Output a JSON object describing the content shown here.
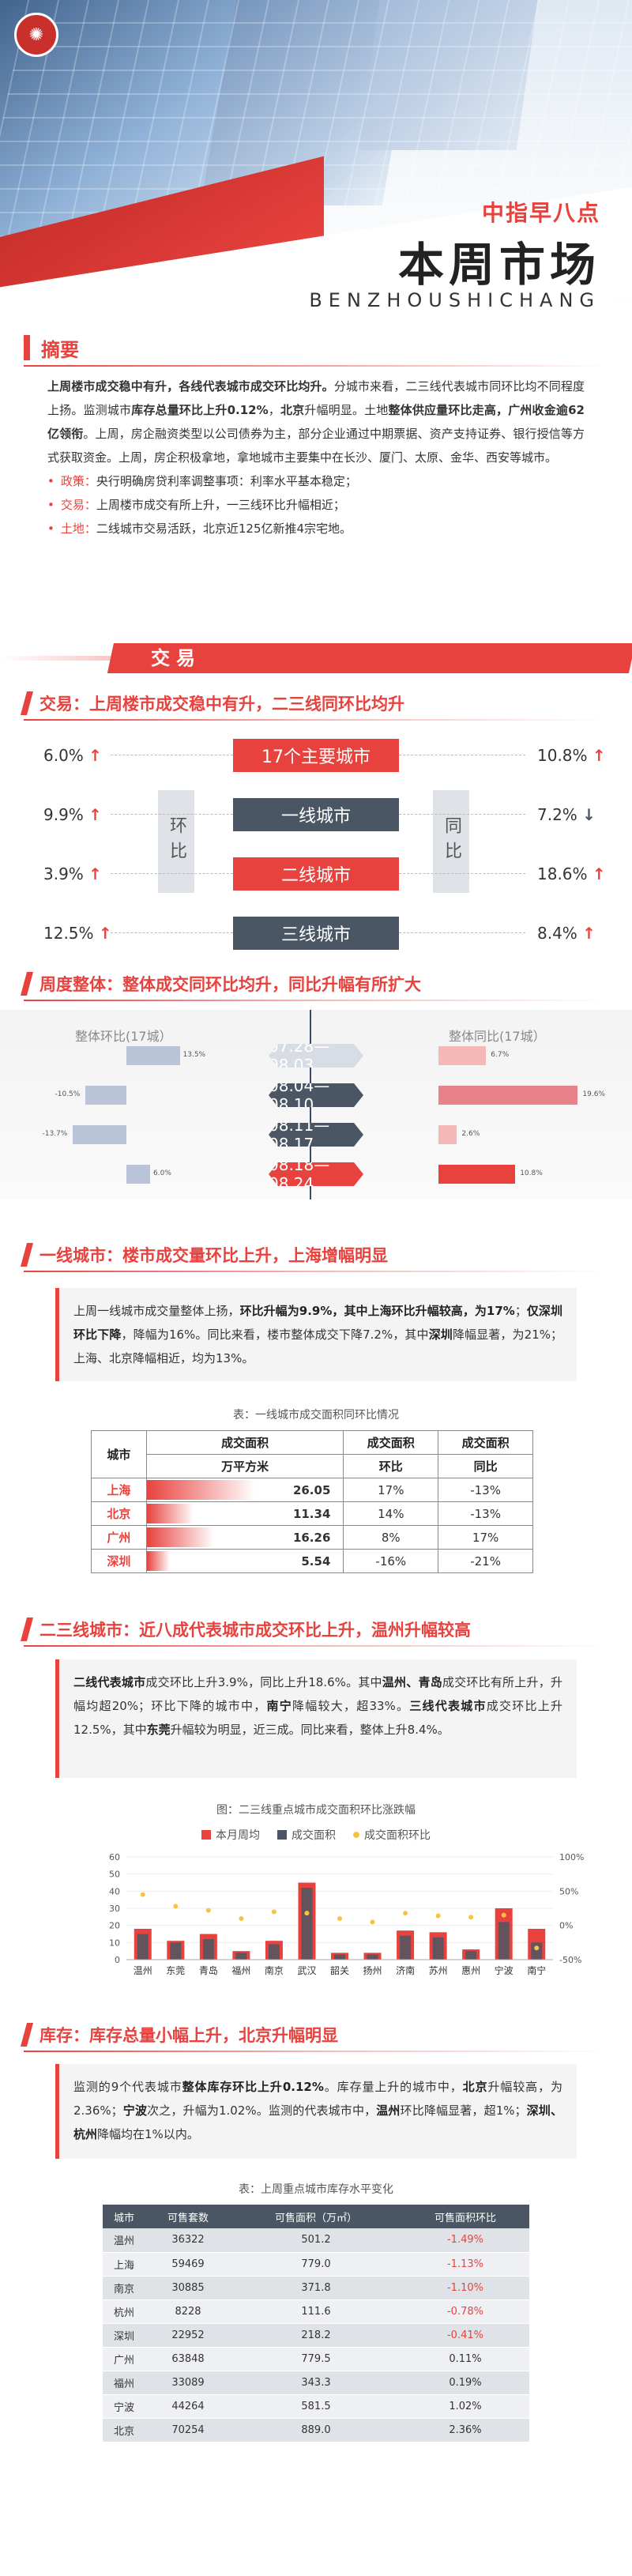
{
  "header": {
    "brand": "中指早八点",
    "title": "本周市场",
    "subtitle": "BENZHOUSHICHANG",
    "logo_icon": "seal-icon"
  },
  "summary": {
    "title": "摘要",
    "para_parts": [
      {
        "t": "上周楼市成交稳中有升，各线代表城市成交环比均升。",
        "b": true
      },
      {
        "t": "分城市来看，二三线代表城市同环比均不同程度上扬。监测城市",
        "b": false
      },
      {
        "t": "库存总量环比上升0.12%",
        "b": true
      },
      {
        "t": "，",
        "b": false
      },
      {
        "t": "北京",
        "b": true
      },
      {
        "t": "升幅明显。土地",
        "b": false
      },
      {
        "t": "整体供应量环比走高，广州收金逾62亿领衔",
        "b": true
      },
      {
        "t": "。上周，房企融资类型以公司债券为主，部分企业通过中期票据、资产支持证券、银行授信等方式获取资金。上周，房企积极拿地，拿地城市主要集中在长沙、厦门、太原、金华、西安等城市。",
        "b": false
      }
    ],
    "bullets": [
      {
        "label": "政策：",
        "text": "央行明确房贷利率调整事项：利率水平基本稳定；"
      },
      {
        "label": "交易：",
        "text": "上周楼市成交有所上升，一三线环比升幅相近；"
      },
      {
        "label": "土地：",
        "text": "二线城市交易活跃，北京近125亿新推4宗宅地。"
      }
    ]
  },
  "banner_trade": "交易",
  "trade": {
    "heading": "交易：上周楼市成交稳中有升，二三线同环比均升",
    "side_left": "环比",
    "side_right": "同比",
    "rows": [
      {
        "name": "17个主要城市",
        "mom": "6.0%",
        "mom_dir": "up",
        "yoy": "10.8%",
        "yoy_dir": "up",
        "style": "red"
      },
      {
        "name": "一线城市",
        "mom": "9.9%",
        "mom_dir": "up",
        "yoy": "7.2%",
        "yoy_dir": "down",
        "style": "gray"
      },
      {
        "name": "二线城市",
        "mom": "3.9%",
        "mom_dir": "up",
        "yoy": "18.6%",
        "yoy_dir": "up",
        "style": "red"
      },
      {
        "name": "三线城市",
        "mom": "12.5%",
        "mom_dir": "up",
        "yoy": "8.4%",
        "yoy_dir": "up",
        "style": "gray"
      }
    ],
    "arrow_up": "↑",
    "arrow_down": "↓"
  },
  "weekly": {
    "heading": "周度整体：整体成交同环比均升，同比升幅有所扩大",
    "left_title": "整体环比(17城）",
    "right_title": "整体同比(17城）",
    "weeks": [
      {
        "label": "07.28—08.03",
        "mom": 13.5,
        "mom_text": "13.5%",
        "yoy": 6.7,
        "yoy_text": "6.7%",
        "style": "lt"
      },
      {
        "label": "08.04—08.10",
        "mom": -10.5,
        "mom_text": "-10.5%",
        "yoy": 19.6,
        "yoy_text": "19.6%",
        "style": "g"
      },
      {
        "label": "08.11—08.17",
        "mom": -13.7,
        "mom_text": "-13.7%",
        "yoy": 2.6,
        "yoy_text": "2.6%",
        "style": "g"
      },
      {
        "label": "08.18—08.24",
        "mom": 6.0,
        "mom_text": "6.0%",
        "yoy": 10.8,
        "yoy_text": "10.8%",
        "style": "r"
      }
    ]
  },
  "tier1": {
    "heading": "一线城市：楼市成交量环比上升，上海增幅明显",
    "text_parts": [
      {
        "t": "上周一线城市成交量整体上扬，",
        "b": false
      },
      {
        "t": "环比升幅为9.9%，其中上海环比升幅较高，为17%",
        "b": true
      },
      {
        "t": "；",
        "b": false
      },
      {
        "t": "仅深圳环比下降",
        "b": true
      },
      {
        "t": "，降幅为16%。同比来看，楼市整体成交下降7.2%，其中",
        "b": false
      },
      {
        "t": "深圳",
        "b": true
      },
      {
        "t": "降幅显著，为21%；上海、北京降幅相近，均为13%。",
        "b": false
      }
    ],
    "table_caption": "表：一线城市成交面积同环比情况",
    "col_city": "城市",
    "col_area": "成交面积",
    "col_area_unit": "万平方米",
    "col_mom_top": "成交面积",
    "col_mom": "环比",
    "col_yoy_top": "成交面积",
    "col_yoy": "同比",
    "rows": [
      {
        "city": "上海",
        "area": "26.05",
        "mom": "17%",
        "yoy": "-13%",
        "area_v": 26.05
      },
      {
        "city": "北京",
        "area": "11.34",
        "mom": "14%",
        "yoy": "-13%",
        "area_v": 11.34
      },
      {
        "city": "广州",
        "area": "16.26",
        "mom": "8%",
        "yoy": "17%",
        "area_v": 16.26
      },
      {
        "city": "深圳",
        "area": "5.54",
        "mom": "-16%",
        "yoy": "-21%",
        "area_v": 5.54
      }
    ]
  },
  "tier23": {
    "heading": "二三线城市：近八成代表城市成交环比上升，温州升幅较高",
    "text_parts": [
      {
        "t": "二线代表城市",
        "b": true
      },
      {
        "t": "成交环比上升3.9%，同比上升18.6%。其中",
        "b": false
      },
      {
        "t": "温州、青岛",
        "b": true
      },
      {
        "t": "成交环比有所上升，升幅均超20%；环比下降的城市中，",
        "b": false
      },
      {
        "t": "南宁",
        "b": true
      },
      {
        "t": "降幅较大，超33%。",
        "b": false
      },
      {
        "t": "三线代表城市",
        "b": true
      },
      {
        "t": "成交环比上升12.5%，其中",
        "b": false
      },
      {
        "t": "东莞",
        "b": true
      },
      {
        "t": "升幅较为明显，近三成。同比来看，整体上升8.4%。",
        "b": false
      }
    ],
    "chart_caption": "图：二三线重点城市成交面积环比涨跌幅"
  },
  "chart_data": {
    "type": "bar",
    "title": "图：二三线重点城市成交面积环比涨跌幅",
    "categories": [
      "温州",
      "东莞",
      "青岛",
      "福州",
      "南京",
      "武汉",
      "韶关",
      "扬州",
      "济南",
      "苏州",
      "惠州",
      "宁波",
      "南宁"
    ],
    "series": [
      {
        "name": "本月周均",
        "values": [
          18,
          11,
          15,
          5,
          11,
          45,
          4,
          4,
          17,
          16,
          6,
          30,
          18
        ]
      },
      {
        "name": "成交面积",
        "values": [
          15,
          10,
          12,
          4,
          9,
          42,
          3,
          3,
          14,
          13,
          5,
          22,
          10
        ]
      },
      {
        "name": "成交面积环比",
        "values": [
          45,
          28,
          22,
          10,
          20,
          18,
          10,
          5,
          18,
          14,
          12,
          15,
          -33
        ]
      }
    ],
    "ylim_left": [
      0,
      60
    ],
    "ylim_right": [
      -50,
      100
    ],
    "yticks_left": [
      "0",
      "10",
      "20",
      "30",
      "40",
      "50",
      "60"
    ],
    "yticks_right": [
      "-50%",
      "0%",
      "50%",
      "100%"
    ],
    "legend": "top"
  },
  "inventory": {
    "heading": "库存：库存总量小幅上升，北京升幅明显",
    "text_parts": [
      {
        "t": "监测的9个代表城市",
        "b": false
      },
      {
        "t": "整体库存环比上升0.12%",
        "b": true
      },
      {
        "t": "。库存量上升的城市中，",
        "b": false
      },
      {
        "t": "北京",
        "b": true
      },
      {
        "t": "升幅较高，为2.36%；",
        "b": false
      },
      {
        "t": "宁波",
        "b": true
      },
      {
        "t": "次之，升幅为1.02%。监测的代表城市中，",
        "b": false
      },
      {
        "t": "温州",
        "b": true
      },
      {
        "t": "环比降幅显著，超1%；",
        "b": false
      },
      {
        "t": "深圳、杭州",
        "b": true
      },
      {
        "t": "降幅均在1%以内。",
        "b": false
      }
    ],
    "table_caption": "表：上周重点城市库存水平变化",
    "cols": [
      "城市",
      "可售套数",
      "可售面积（万㎡）",
      "可售面积环比"
    ],
    "rows": [
      {
        "city": "温州",
        "units": "36322",
        "area": "501.2",
        "mom": "-1.49%",
        "neg": true
      },
      {
        "city": "上海",
        "units": "59469",
        "area": "779.0",
        "mom": "-1.13%",
        "neg": true
      },
      {
        "city": "南京",
        "units": "30885",
        "area": "371.8",
        "mom": "-1.10%",
        "neg": true
      },
      {
        "city": "杭州",
        "units": "8228",
        "area": "111.6",
        "mom": "-0.78%",
        "neg": true
      },
      {
        "city": "深圳",
        "units": "22952",
        "area": "218.2",
        "mom": "-0.41%",
        "neg": true
      },
      {
        "city": "广州",
        "units": "63848",
        "area": "779.5",
        "mom": "0.11%",
        "neg": false
      },
      {
        "city": "福州",
        "units": "33089",
        "area": "343.3",
        "mom": "0.19%",
        "neg": false
      },
      {
        "city": "宁波",
        "units": "44264",
        "area": "581.5",
        "mom": "1.02%",
        "neg": false
      },
      {
        "city": "北京",
        "units": "70254",
        "area": "889.0",
        "mom": "2.36%",
        "neg": false
      }
    ]
  },
  "colors": {
    "accent": "#e8423e",
    "dark": "#4a5663",
    "blue": "#3a4a6b",
    "gold": "#f5c542"
  }
}
